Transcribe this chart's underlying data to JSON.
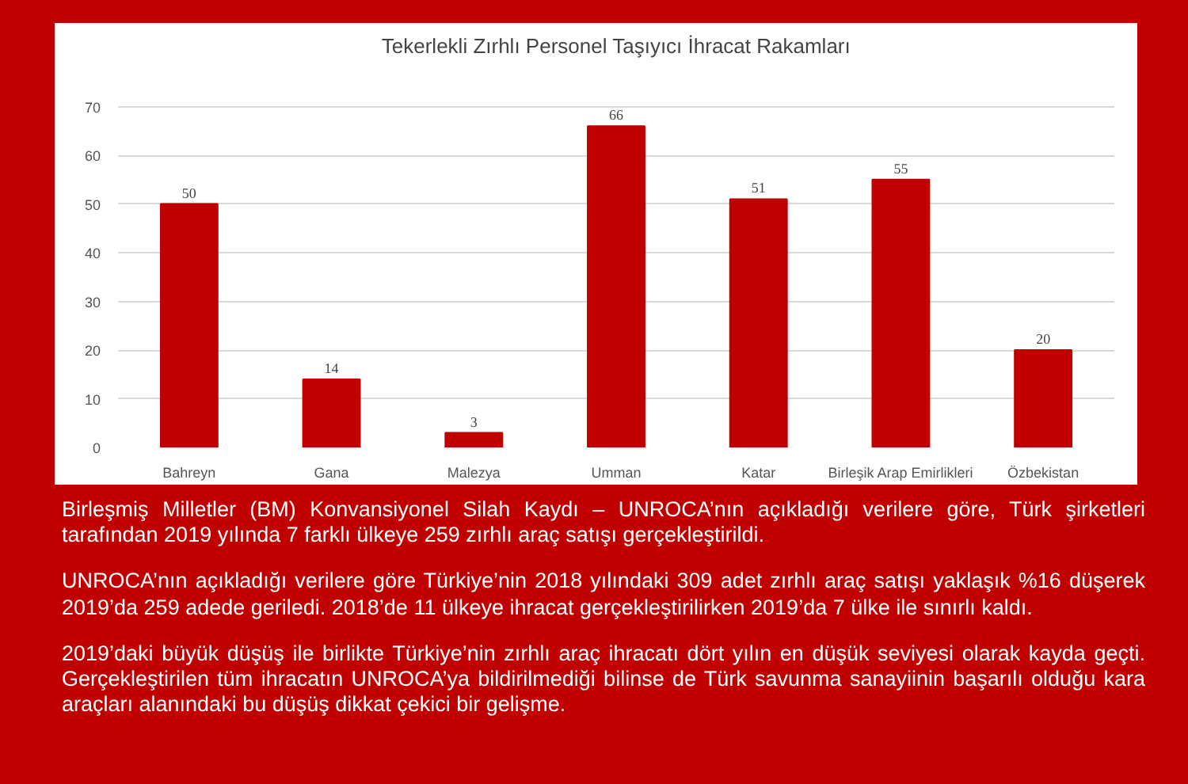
{
  "chart_data": {
    "type": "bar",
    "title": "Tekerlekli Zırhlı Personel Taşıyıcı İhracat Rakamları",
    "categories": [
      "Bahreyn",
      "Gana",
      "Malezya",
      "Umman",
      "Katar",
      "Birleşik Arap Emirlikleri",
      "Özbekistan"
    ],
    "values": [
      50,
      14,
      3,
      66,
      51,
      55,
      20
    ],
    "color": "#c00000",
    "ylim": [
      0,
      70
    ],
    "yticks": [
      0,
      10,
      20,
      30,
      40,
      50,
      60,
      70
    ],
    "grid": "y",
    "data_labels": true,
    "annotations": [
      "Birleşmiş Milletler (BM) Konvansiyonel Silah Kaydı – UNROCA’nın açıkladığı verilere göre, Türk şirketleri tarafından 2019 yılında 7 farklı ülkeye 259 zırhlı araç satışı gerçekleştirildi.",
      "UNROCA’nın açıkladığı verilere göre Türkiye’nin 2018 yılındaki 309 adet zırhlı araç satışı yaklaşık %16 düşerek 2019’da 259 adede geriledi. 2018’de 11 ülkeye ihracat gerçekleştirilirken 2019’da 7 ülke ile sınırlı kaldı.",
      "2019’daki büyük düşüş ile birlikte Türkiye’nin zırhlı araç ihracatı dört yılın en düşük seviyesi olarak kayda geçti. Gerçekleştirilen tüm ihracatın UNROCA’ya bildirilmediği bilinse de Türk savunma sanayiinin başarılı olduğu kara araçları alanındaki bu düşüş dikkat çekici bir gelişme."
    ]
  }
}
